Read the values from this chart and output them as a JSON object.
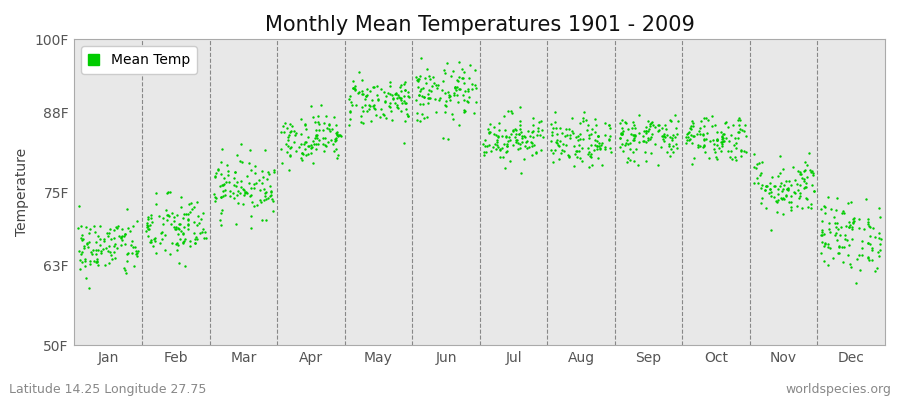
{
  "title": "Monthly Mean Temperatures 1901 - 2009",
  "ylabel": "Temperature",
  "xlabel_labels": [
    "Jan",
    "Feb",
    "Mar",
    "Apr",
    "May",
    "Jun",
    "Jul",
    "Aug",
    "Sep",
    "Oct",
    "Nov",
    "Dec"
  ],
  "subtitle": "Latitude 14.25 Longitude 27.75",
  "watermark": "worldspecies.org",
  "ytick_labels": [
    "50F",
    "63F",
    "75F",
    "88F",
    "100F"
  ],
  "ytick_values": [
    50,
    63,
    75,
    88,
    100
  ],
  "ylim": [
    50,
    100
  ],
  "dot_color": "#00cc00",
  "dot_size": 3,
  "bg_color": "#ffffff",
  "plot_bg_color": "#e8e8e8",
  "n_years": 109,
  "monthly_means": [
    66,
    69,
    76,
    84,
    90,
    91,
    84,
    83,
    84,
    84,
    76,
    68
  ],
  "monthly_stds": [
    2.5,
    2.8,
    2.5,
    2.0,
    2.0,
    2.5,
    2.0,
    2.0,
    2.0,
    2.0,
    2.5,
    3.0
  ],
  "title_fontsize": 15,
  "label_fontsize": 10,
  "tick_fontsize": 10,
  "legend_fontsize": 10,
  "subtitle_fontsize": 9,
  "watermark_fontsize": 9
}
